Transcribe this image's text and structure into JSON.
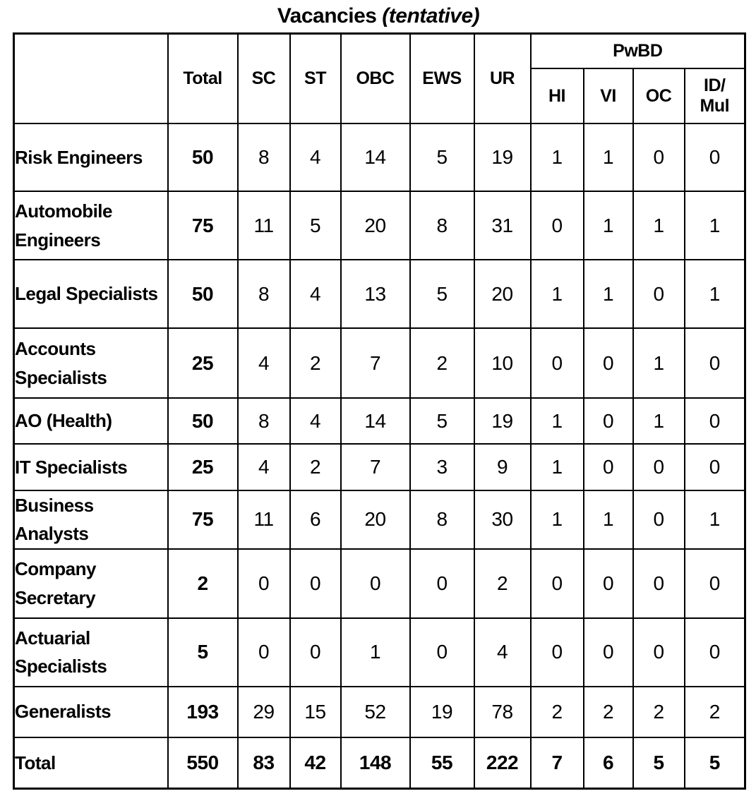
{
  "title": {
    "main": "Vacancies",
    "suffix": "(tentative)"
  },
  "table": {
    "corner_label": "",
    "columns": [
      "Total",
      "SC",
      "ST",
      "OBC",
      "EWS",
      "UR"
    ],
    "pwbd": {
      "label": "PwBD",
      "subcolumns": [
        "HI",
        "VI",
        "OC",
        "ID/\nMul"
      ]
    },
    "rows": [
      {
        "label": "Risk Engineers",
        "values": [
          50,
          8,
          4,
          14,
          5,
          19,
          1,
          1,
          0,
          0
        ]
      },
      {
        "label": "Automobile Engineers",
        "values": [
          75,
          11,
          5,
          20,
          8,
          31,
          0,
          1,
          1,
          1
        ]
      },
      {
        "label": "Legal Specialists",
        "values": [
          50,
          8,
          4,
          13,
          5,
          20,
          1,
          1,
          0,
          1
        ]
      },
      {
        "label": "Accounts Specialists",
        "values": [
          25,
          4,
          2,
          7,
          2,
          10,
          0,
          0,
          1,
          0
        ]
      },
      {
        "label": "AO (Health)",
        "values": [
          50,
          8,
          4,
          14,
          5,
          19,
          1,
          0,
          1,
          0
        ]
      },
      {
        "label": "IT Specialists",
        "values": [
          25,
          4,
          2,
          7,
          3,
          9,
          1,
          0,
          0,
          0
        ]
      },
      {
        "label": "Business Analysts",
        "values": [
          75,
          11,
          6,
          20,
          8,
          30,
          1,
          1,
          0,
          1
        ]
      },
      {
        "label": "Company Secretary",
        "values": [
          2,
          0,
          0,
          0,
          0,
          2,
          0,
          0,
          0,
          0
        ]
      },
      {
        "label": "Actuarial Specialists",
        "values": [
          5,
          0,
          0,
          1,
          0,
          4,
          0,
          0,
          0,
          0
        ]
      },
      {
        "label": "Generalists",
        "values": [
          193,
          29,
          15,
          52,
          19,
          78,
          2,
          2,
          2,
          2
        ]
      }
    ],
    "total_row": {
      "label": "Total",
      "values": [
        550,
        83,
        42,
        148,
        55,
        222,
        7,
        6,
        5,
        5
      ]
    }
  }
}
